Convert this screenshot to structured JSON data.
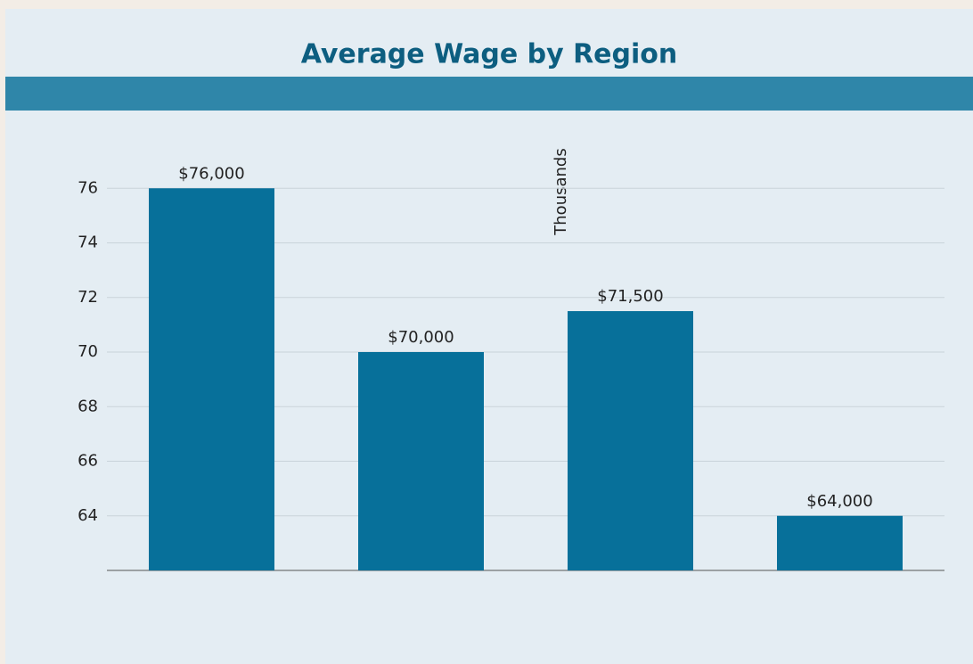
{
  "chart_data": {
    "type": "bar",
    "title": "Average Wage by Region",
    "y_label": "Thousands",
    "categories": [
      null,
      null,
      null,
      null
    ],
    "values": [
      76,
      70,
      71.5,
      64
    ],
    "value_labels": [
      "$76,000",
      "$70,000",
      "$71,500",
      "$64,000"
    ],
    "color": "#07709a",
    "ylim": [
      62,
      78
    ],
    "yticks": [
      64,
      66,
      68,
      70,
      72,
      74,
      76
    ],
    "grid": true
  }
}
